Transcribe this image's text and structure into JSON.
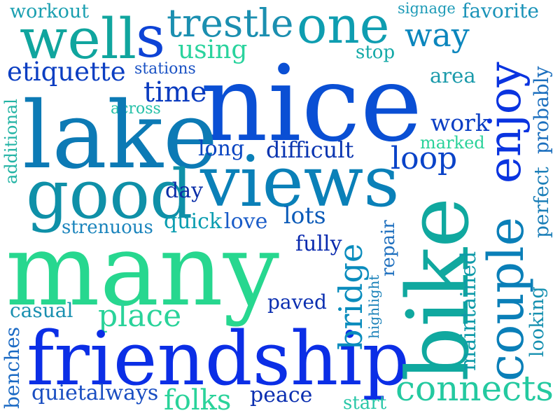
{
  "words": {
    "workout": {
      "text": "workout",
      "color": "#1a9fb0"
    },
    "trestle": {
      "text": "trestle",
      "color": "#1b8fb0"
    },
    "one": {
      "text": "one",
      "color": "#0e9db0"
    },
    "signage": {
      "text": "signage",
      "color": "#1e9bb7"
    },
    "favorite": {
      "text": "favorite",
      "color": "#1a93b8"
    },
    "well": {
      "text": "well",
      "color": "#10a59e"
    },
    "s": {
      "text": "s",
      "color": "#0d43d6"
    },
    "using": {
      "text": "using",
      "color": "#2ad39d"
    },
    "way": {
      "text": "way",
      "color": "#0b86bd"
    },
    "stop": {
      "text": "stop",
      "color": "#14a9a7"
    },
    "etiquette": {
      "text": "etiquette",
      "color": "#0b3ec2"
    },
    "stations": {
      "text": "stations",
      "color": "#1a52c4"
    },
    "area": {
      "text": "area",
      "color": "#1a9aaa"
    },
    "nice": {
      "text": "nice",
      "color": "#0a4fd4"
    },
    "time": {
      "text": "time",
      "color": "#0a3bbf"
    },
    "enjoy": {
      "text": "enjoy",
      "color": "#0a34e0"
    },
    "across": {
      "text": "across",
      "color": "#24c0a7"
    },
    "lake": {
      "text": "lake",
      "color": "#0c7ab5"
    },
    "work": {
      "text": "work",
      "color": "#0b3ec4"
    },
    "perfect": {
      "text": "perfect",
      "color": "#1c7fb8"
    },
    "probably": {
      "text": "probably",
      "color": "#1c6fbe"
    },
    "additional": {
      "text": "additional",
      "color": "#22b3a4"
    },
    "marked": {
      "text": "marked",
      "color": "#2ad29a"
    },
    "long": {
      "text": "long",
      "color": "#0a45c2"
    },
    "difficult": {
      "text": "difficult",
      "color": "#0a35b0"
    },
    "loop": {
      "text": "loop",
      "color": "#0a43c8"
    },
    "views": {
      "text": "views",
      "color": "#0a80b8"
    },
    "good": {
      "text": "good",
      "color": "#0f90a8"
    },
    "day": {
      "text": "day",
      "color": "#0a2ea8"
    },
    "lots": {
      "text": "lots",
      "color": "#0a5ab8"
    },
    "bike": {
      "text": "bike",
      "color": "#10a89f"
    },
    "couple": {
      "text": "couple",
      "color": "#0a7fb8"
    },
    "quick": {
      "text": "quick",
      "color": "#0a9db0"
    },
    "love": {
      "text": "love",
      "color": "#1a5cc8"
    },
    "strenuous": {
      "text": "strenuous",
      "color": "#1a84bc"
    },
    "bridge": {
      "text": "bridge",
      "color": "#0a8cbd"
    },
    "repair": {
      "text": "repair",
      "color": "#1e6fbe"
    },
    "fully": {
      "text": "fully",
      "color": "#0a2aae"
    },
    "many": {
      "text": "many",
      "color": "#27d78f"
    },
    "maintained": {
      "text": "maintained",
      "color": "#0f9aa8"
    },
    "looking": {
      "text": "looking",
      "color": "#1590b0"
    },
    "highlight": {
      "text": "highlight",
      "color": "#1880b8"
    },
    "casual": {
      "text": "casual",
      "color": "#1a90b0"
    },
    "place": {
      "text": "place",
      "color": "#2ad39a"
    },
    "paved": {
      "text": "paved",
      "color": "#0a2eb0"
    },
    "friendship": {
      "text": "friendship",
      "color": "#0b2ee6"
    },
    "benches": {
      "text": "benches",
      "color": "#1b6ac4"
    },
    "connects": {
      "text": "connects",
      "color": "#24c9a0"
    },
    "quietalways": {
      "text": "quietalways",
      "color": "#1a4ec2"
    },
    "folks": {
      "text": "folks",
      "color": "#2ad39a"
    },
    "peace": {
      "text": "peace",
      "color": "#0a2eb0"
    },
    "start": {
      "text": "start",
      "color": "#2ac7a8"
    }
  }
}
